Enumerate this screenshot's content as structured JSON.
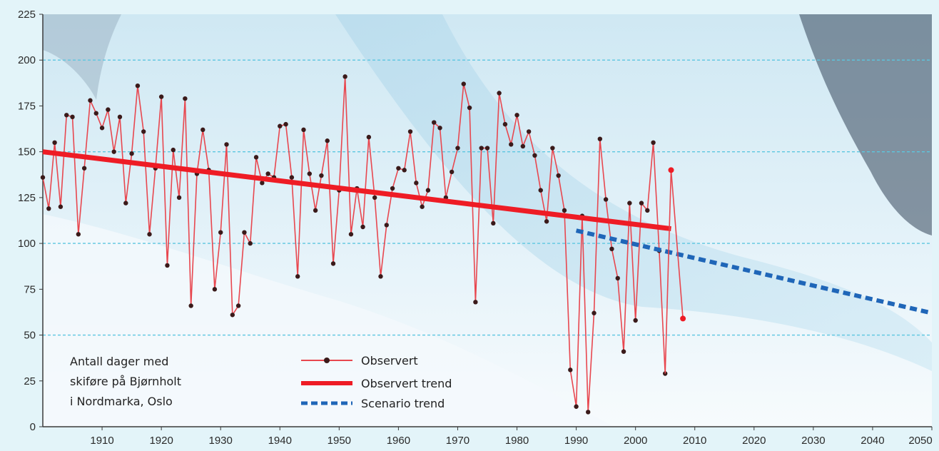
{
  "chart_data": {
    "type": "line",
    "xlim": [
      1900,
      2050
    ],
    "ylim": [
      0,
      225
    ],
    "xticks": [
      1910,
      1920,
      1930,
      1940,
      1950,
      1960,
      1970,
      1980,
      1990,
      2000,
      2010,
      2020,
      2030,
      2040,
      2050
    ],
    "yticks": [
      0,
      25,
      50,
      75,
      100,
      125,
      150,
      175,
      200,
      225
    ],
    "grid": "horizontal dashed at 50, 100, 150, 200",
    "caption": [
      "Antall dager med",
      "skiføre på Bjørnholt",
      "i Nordmarka, Oslo"
    ],
    "legend_position": "bottom-center",
    "colors": {
      "observed": "#e8474f",
      "observed_marker": "#3a1a1a",
      "observed_trend": "#ee1c25",
      "scenario_trend": "#1f66b8",
      "grid": "#5cc6e0"
    },
    "series": [
      {
        "name": "Observert",
        "x": [
          1900,
          1901,
          1902,
          1903,
          1904,
          1905,
          1906,
          1907,
          1908,
          1909,
          1910,
          1911,
          1912,
          1913,
          1914,
          1915,
          1916,
          1917,
          1918,
          1919,
          1920,
          1921,
          1922,
          1923,
          1924,
          1925,
          1926,
          1927,
          1928,
          1929,
          1930,
          1931,
          1932,
          1933,
          1934,
          1935,
          1936,
          1937,
          1938,
          1939,
          1940,
          1941,
          1942,
          1943,
          1944,
          1945,
          1946,
          1947,
          1948,
          1949,
          1950,
          1951,
          1952,
          1953,
          1954,
          1955,
          1956,
          1957,
          1958,
          1959,
          1960,
          1961,
          1962,
          1963,
          1964,
          1965,
          1966,
          1967,
          1968,
          1969,
          1970,
          1971,
          1972,
          1973,
          1974,
          1975,
          1976,
          1977,
          1978,
          1979,
          1980,
          1981,
          1982,
          1983,
          1984,
          1985,
          1986,
          1987,
          1988,
          1989,
          1990,
          1991,
          1992,
          1993,
          1994,
          1995,
          1996,
          1997,
          1998,
          1999,
          2000,
          2001,
          2002,
          2003,
          2004,
          2005
        ],
        "values": [
          136,
          119,
          155,
          120,
          170,
          169,
          105,
          141,
          178,
          171,
          163,
          173,
          150,
          169,
          122,
          149,
          186,
          161,
          105,
          141,
          180,
          88,
          151,
          125,
          179,
          66,
          138,
          162,
          140,
          75,
          106,
          154,
          61,
          66,
          106,
          100,
          147,
          133,
          138,
          136,
          164,
          165,
          136,
          82,
          162,
          138,
          118,
          137,
          156,
          89,
          129,
          191,
          105,
          130,
          109,
          158,
          125,
          82,
          110,
          130,
          141,
          140,
          161,
          133,
          120,
          129,
          166,
          163,
          125,
          139,
          152,
          187,
          174,
          68,
          152,
          152,
          111,
          182,
          165,
          154,
          170,
          153,
          161,
          148,
          129,
          112,
          152,
          137,
          118,
          31,
          11,
          115,
          8,
          62,
          157,
          124,
          97,
          81,
          41,
          122,
          58,
          122,
          118,
          155,
          96,
          29
        ]
      },
      {
        "name": "Observert trend",
        "x": [
          1900,
          2006
        ],
        "values": [
          150,
          108
        ]
      },
      {
        "name": "Scenario trend",
        "x": [
          1990,
          2050
        ],
        "values": [
          107,
          62
        ]
      }
    ],
    "extra_points": [
      {
        "x": 2006,
        "value": 140
      },
      {
        "x": 2008,
        "value": 59
      }
    ]
  }
}
